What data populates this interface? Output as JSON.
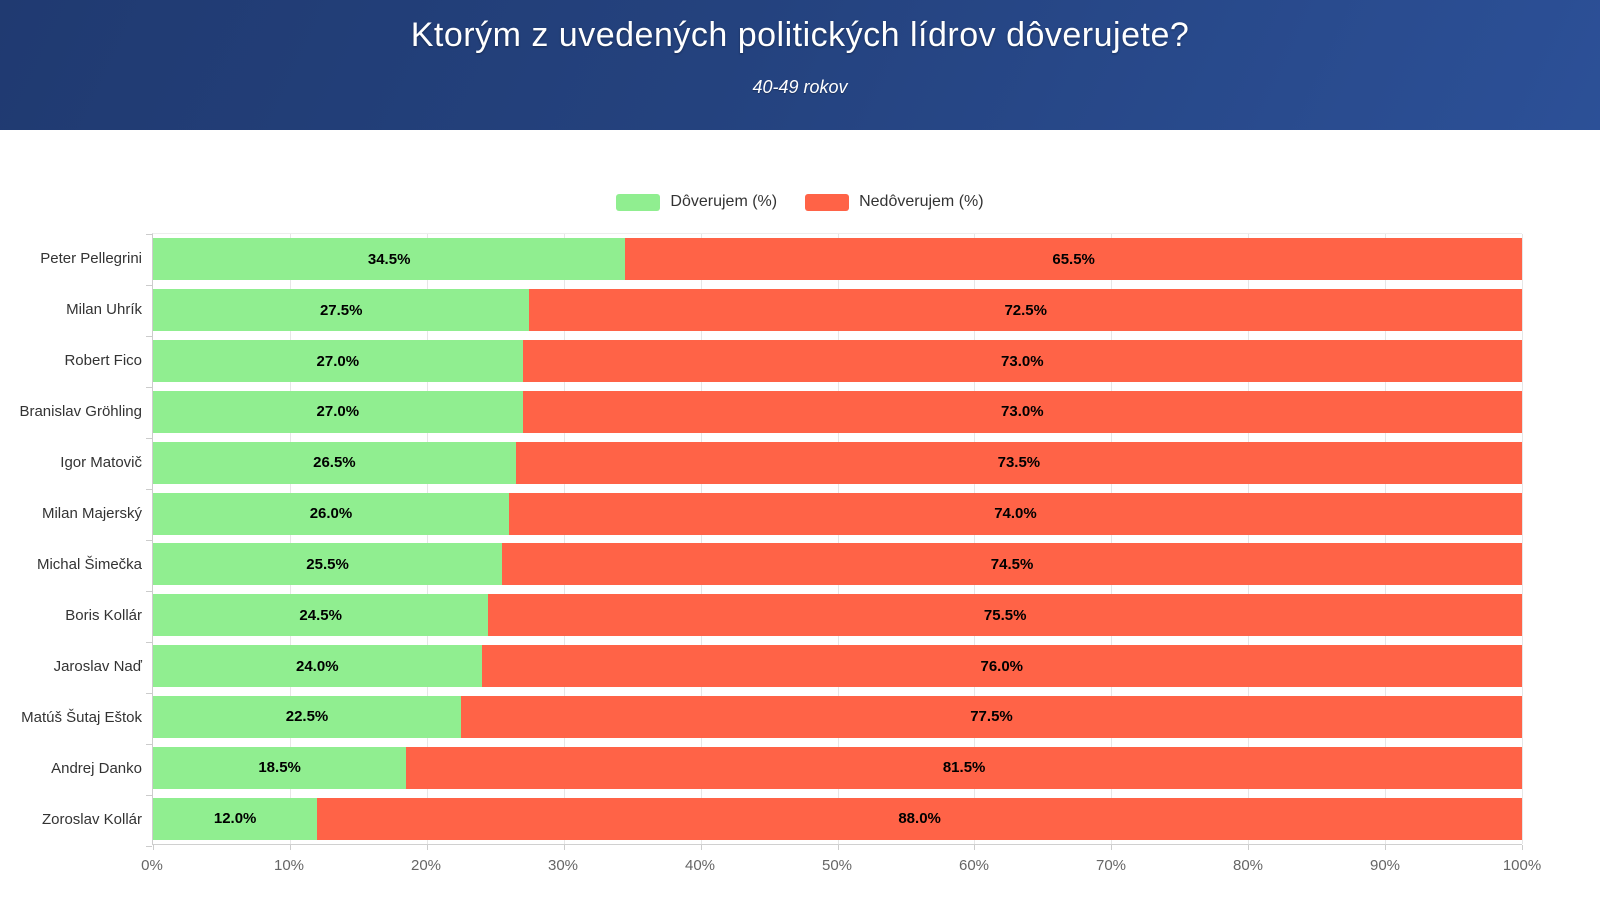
{
  "header": {
    "title": "Ktorým z uvedených politických lídrov dôverujete?",
    "subtitle": "40-49 rokov"
  },
  "legend": {
    "items": [
      {
        "label": "Dôverujem (%)",
        "color": "#90ee90"
      },
      {
        "label": "Nedôverujem (%)",
        "color": "#ff6347"
      }
    ]
  },
  "colors": {
    "trust": "#90ee90",
    "distrust": "#ff6347",
    "header_gradient_start": "#203a71",
    "header_gradient_end": "#2c5097",
    "gridline": "#e6e6e6",
    "axis_label": "#666666",
    "category_label": "#333333"
  },
  "chart_data": {
    "type": "bar",
    "orientation": "horizontal",
    "stacked": true,
    "title": "Ktorým z uvedených politických lídrov dôverujete?",
    "subtitle": "40-49 rokov",
    "categories": [
      "Peter Pellegrini",
      "Milan Uhrík",
      "Robert Fico",
      "Branislav Gröhling",
      "Igor Matovič",
      "Milan Majerský",
      "Michal Šimečka",
      "Boris Kollár",
      "Jaroslav Naď",
      "Matúš Šutaj Eštok",
      "Andrej Danko",
      "Zoroslav Kollár"
    ],
    "series": [
      {
        "name": "Dôverujem (%)",
        "color": "#90ee90",
        "values": [
          34.5,
          27.5,
          27.0,
          27.0,
          26.5,
          26.0,
          25.5,
          24.5,
          24.0,
          22.5,
          18.5,
          12.0
        ]
      },
      {
        "name": "Nedôverujem (%)",
        "color": "#ff6347",
        "values": [
          65.5,
          72.5,
          73.0,
          73.0,
          73.5,
          74.0,
          74.5,
          75.5,
          76.0,
          77.5,
          81.5,
          88.0
        ]
      }
    ],
    "xlabel": "",
    "ylabel": "",
    "xlim": [
      0,
      100
    ],
    "x_tick_labels": [
      "0%",
      "10%",
      "20%",
      "30%",
      "40%",
      "50%",
      "60%",
      "70%",
      "80%",
      "90%",
      "100%"
    ],
    "value_suffix": "%",
    "value_decimals": 1,
    "grid": true,
    "legend_position": "top"
  }
}
